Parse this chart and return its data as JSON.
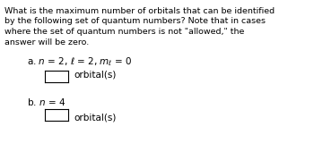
{
  "background_color": "#ffffff",
  "text_color": "#000000",
  "box_edge_color": "#000000",
  "box_face_color": "#ffffff",
  "para_lines": [
    "What is the maximum number of orbitals that can be identified",
    "by the following set of quantum numbers? Note that in cases",
    "where the set of quantum numbers is not \"allowed,\" the",
    "answer will be zero."
  ],
  "item_a_text": "a. $n$ = 2, $\\ell$ = 2, $m_\\ell$ = 0",
  "item_b_text": "b. $n$ = 4",
  "orbital_text": "orbital(s)",
  "fs_body": 6.8,
  "fs_items": 7.5,
  "fig_width": 3.5,
  "fig_height": 1.7,
  "dpi": 100
}
